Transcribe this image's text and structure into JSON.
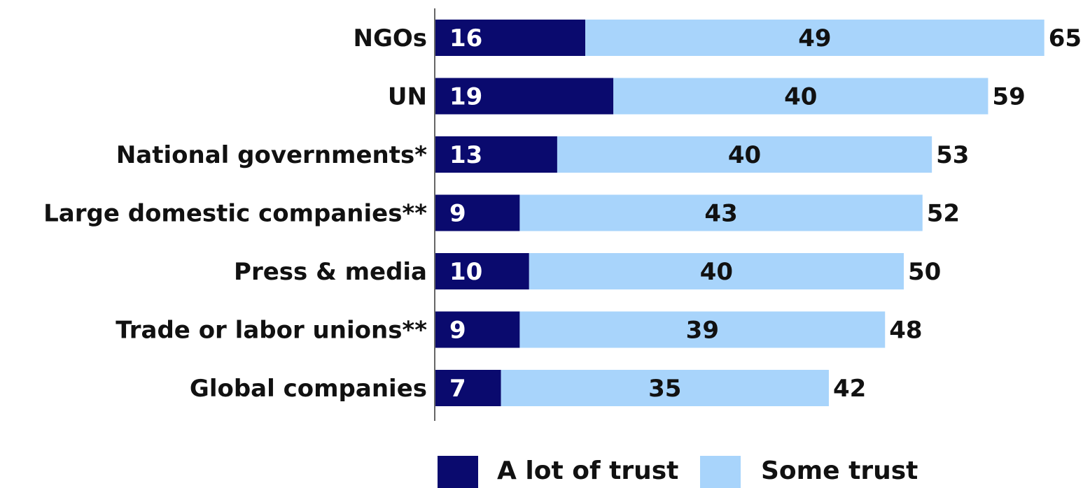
{
  "chart_data": {
    "type": "bar",
    "orientation": "horizontal",
    "stacked": true,
    "categories": [
      "NGOs",
      "UN",
      "National governments*",
      "Large domestic companies**",
      "Press & media",
      "Trade or labor unions**",
      "Global companies"
    ],
    "series": [
      {
        "name": "A lot of trust",
        "values": [
          16,
          19,
          13,
          9,
          10,
          9,
          7
        ]
      },
      {
        "name": "Some trust",
        "values": [
          49,
          40,
          40,
          43,
          40,
          39,
          35
        ]
      }
    ],
    "totals": [
      65,
      59,
      53,
      52,
      50,
      48,
      42
    ],
    "xlim": [
      0,
      65
    ],
    "grid": false,
    "legend_position": "bottom",
    "colors": {
      "a_lot_of_trust": "#0a0a6e",
      "some_trust": "#a8d4fb",
      "axis": "#333333"
    }
  }
}
